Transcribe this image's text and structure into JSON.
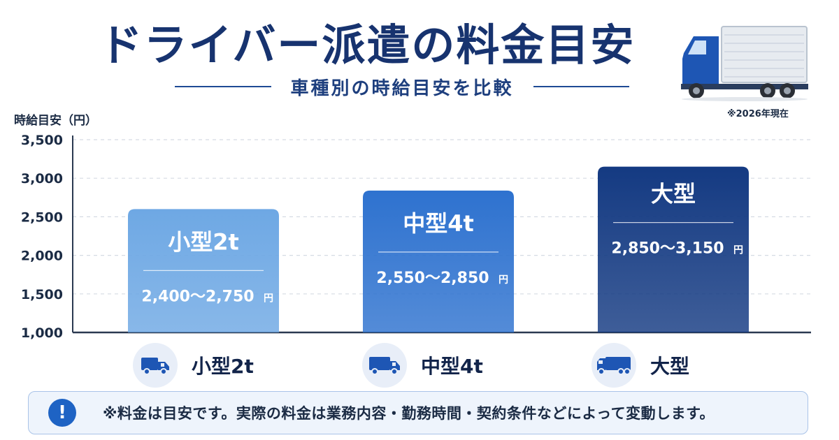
{
  "header": {
    "title": "ドライバー派遣の料金目安",
    "subtitle": "車種別の時給目安を比較",
    "date_note": "※2026年現在"
  },
  "chart_data": {
    "type": "bar",
    "ylabel": "時給目安（円）",
    "ylim": [
      1000,
      3500
    ],
    "yticks": [
      "1,000",
      "1,500",
      "2,000",
      "2,500",
      "3,000",
      "3,500"
    ],
    "ytick_values": [
      1000,
      1500,
      2000,
      2500,
      3000,
      3500
    ],
    "grid": true,
    "categories": [
      "小型2t",
      "中型4t",
      "大型"
    ],
    "values": [
      2600,
      2840,
      3150
    ],
    "ranges": [
      "2,400〜2,750",
      "2,550〜2,850",
      "2,850〜3,150"
    ],
    "range_unit": "円",
    "colors": [
      "#6ea8e4",
      "#2e72cf",
      "#143a82"
    ]
  },
  "categories_row": [
    {
      "label": "小型2t",
      "icon": "small-truck-icon"
    },
    {
      "label": "中型4t",
      "icon": "medium-truck-icon"
    },
    {
      "label": "大型",
      "icon": "large-truck-icon"
    }
  ],
  "notice": {
    "icon": "exclamation-icon",
    "text": "※料金は目安です。実際の料金は業務内容・勤務時間・契約条件などによって変動します。"
  },
  "colors": {
    "title": "#17336f",
    "accent": "#1e63c4",
    "axis": "#1b2b44"
  }
}
